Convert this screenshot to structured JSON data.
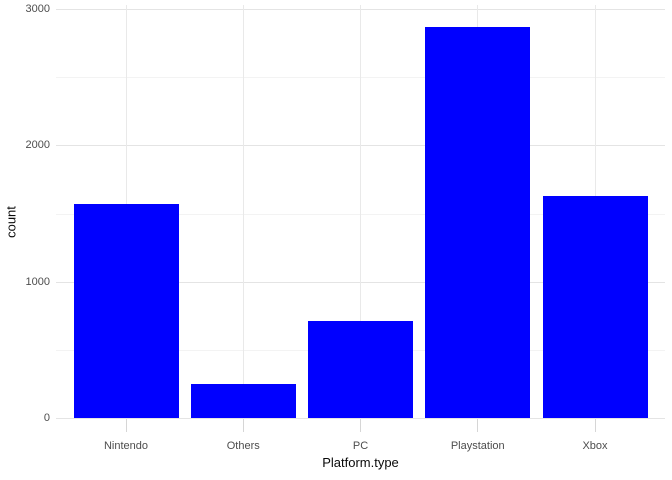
{
  "chart_data": {
    "type": "bar",
    "title": "",
    "categories": [
      "Nintendo",
      "Others",
      "PC",
      "Playstation",
      "Xbox"
    ],
    "values": [
      1570,
      250,
      710,
      2870,
      1630
    ],
    "xlabel": "Platform.type",
    "ylabel": "count",
    "ylim": [
      0,
      3030
    ],
    "y_major_ticks": [
      0,
      1000,
      2000,
      3000
    ],
    "y_minor_ticks": [
      500,
      1500,
      2500
    ],
    "bar_fill_color": "#0000ff",
    "major_gridline_color": "#e4e4e4",
    "minor_gridline_color": "#f3f3f3",
    "axis_text_color": "#4d4d4d",
    "axis_title_color": "#0a0a0a",
    "background_color": "#ffffff",
    "grid": true,
    "legend_position": "none"
  }
}
